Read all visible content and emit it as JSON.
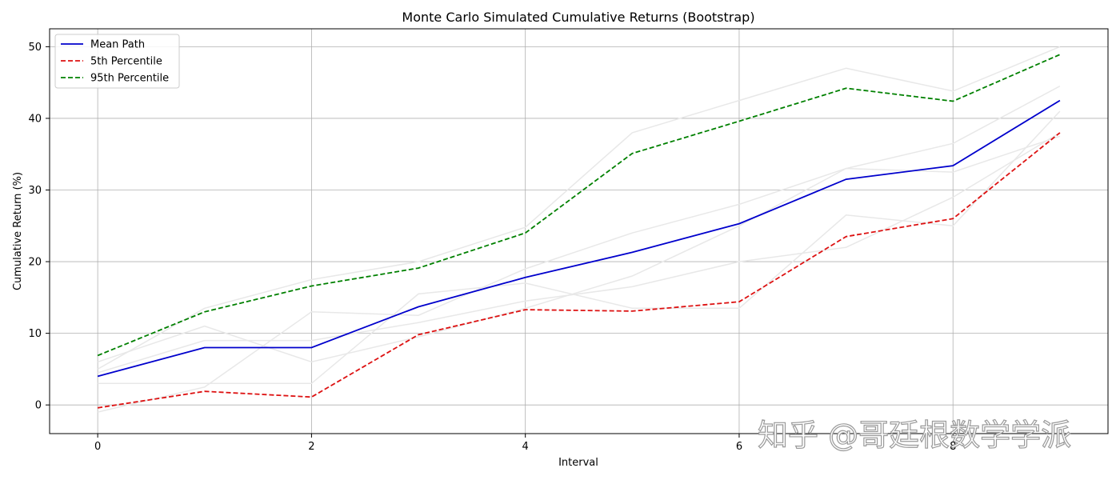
{
  "chart_data": {
    "type": "line",
    "title": "Monte Carlo Simulated Cumulative Returns (Bootstrap)",
    "xlabel": "Interval",
    "ylabel": "Cumulative Return (%)",
    "xlim": [
      -0.45,
      9.45
    ],
    "ylim": [
      -4,
      52.5
    ],
    "x_ticks": [
      0,
      2,
      4,
      6,
      8
    ],
    "y_ticks": [
      0,
      10,
      20,
      30,
      40,
      50
    ],
    "grid": true,
    "legend_position": "top-left",
    "x": [
      0,
      1,
      2,
      3,
      4,
      5,
      6,
      7,
      8,
      9
    ],
    "series": [
      {
        "name": "Mean Path",
        "color": "#0000cc",
        "style": "solid",
        "values": [
          4.0,
          8.0,
          8.0,
          13.7,
          17.8,
          21.3,
          25.3,
          31.5,
          33.4,
          42.5
        ]
      },
      {
        "name": "5th Percentile",
        "color": "#dd1111",
        "style": "dashed",
        "values": [
          -0.4,
          1.9,
          1.1,
          9.8,
          13.3,
          13.1,
          14.4,
          23.5,
          26.0,
          38.0
        ]
      },
      {
        "name": "95th Percentile",
        "color": "#008000",
        "style": "dashed",
        "values": [
          6.9,
          13.0,
          16.6,
          19.1,
          24.0,
          35.1,
          39.6,
          44.2,
          42.4,
          48.9
        ]
      }
    ],
    "background_paths": [
      [
        6.0,
        11.0,
        6.0,
        9.5,
        13.5,
        18.0,
        25.0,
        33.0,
        32.5,
        37.5
      ],
      [
        3.0,
        3.0,
        3.0,
        15.5,
        17.0,
        13.5,
        13.5,
        26.5,
        25.0,
        41.0
      ],
      [
        5.0,
        13.5,
        17.5,
        20.0,
        24.8,
        38.0,
        42.5,
        47.0,
        43.8,
        50.0
      ],
      [
        -1.0,
        2.5,
        13.0,
        12.5,
        19.0,
        24.0,
        28.0,
        33.0,
        36.5,
        44.5
      ],
      [
        4.5,
        9.0,
        9.0,
        11.5,
        14.5,
        16.5,
        20.0,
        22.0,
        29.0,
        38.0
      ]
    ],
    "background_color": "#e8e8e8"
  },
  "watermark": "知乎 @哥廷根数学学派"
}
